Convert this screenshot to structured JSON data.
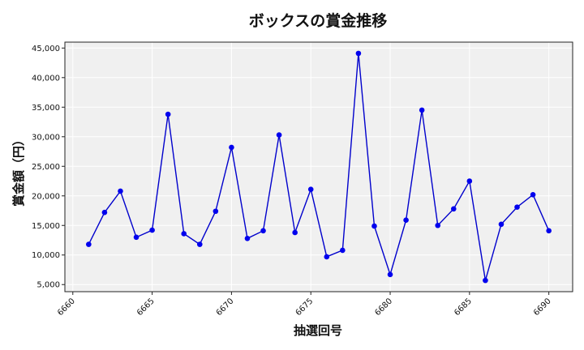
{
  "chart_data": {
    "type": "line",
    "title": "ボックスの賞金推移",
    "xlabel": "抽選回号",
    "ylabel": "賞金額（円）",
    "x": [
      6661,
      6662,
      6663,
      6664,
      6665,
      6666,
      6667,
      6668,
      6669,
      6670,
      6671,
      6672,
      6673,
      6674,
      6675,
      6676,
      6677,
      6678,
      6679,
      6680,
      6681,
      6682,
      6683,
      6684,
      6685,
      6686,
      6687,
      6688,
      6689,
      6690
    ],
    "series": [
      {
        "values": [
          11800,
          17200,
          20800,
          13000,
          14200,
          33800,
          13600,
          11800,
          17400,
          28200,
          12800,
          14100,
          30300,
          13800,
          21100,
          9700,
          10800,
          44100,
          14900,
          6700,
          15900,
          34500,
          15000,
          17800,
          22500,
          5700,
          15200,
          18100,
          20200,
          14100
        ]
      }
    ],
    "xlim": [
      6659.5,
      6691.5
    ],
    "ylim": [
      3800,
      46000
    ],
    "xticks": [
      "6660",
      "6665",
      "6670",
      "6675",
      "6680",
      "6685",
      "6690"
    ],
    "yticks": [
      "5,000",
      "10,000",
      "15,000",
      "20,000",
      "25,000",
      "30,000",
      "35,000",
      "40,000",
      "45,000"
    ],
    "grid": true,
    "colors": {
      "line": "#0000cc",
      "marker": "#0000ee",
      "plot_bg": "#f0f0f0",
      "grid": "#ffffff"
    }
  }
}
